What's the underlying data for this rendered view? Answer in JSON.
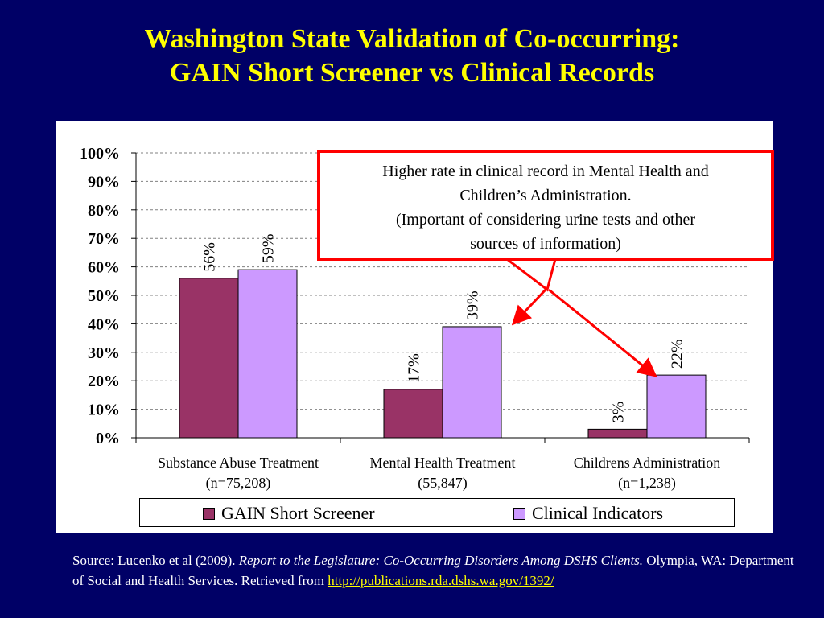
{
  "slide": {
    "title_line1": "Washington State Validation of Co-occurring:",
    "title_line2": "GAIN Short Screener vs Clinical Records"
  },
  "callout": {
    "line1": "Higher rate in clinical record in Mental Health and",
    "line2": "Children’s Administration.",
    "line3": "(Important of considering urine tests and other",
    "line4": "sources of information)"
  },
  "source": {
    "prefix": "Source:  Lucenko et al (2009). ",
    "italic": "Report to the Legislature: Co-Occurring Disorders Among DSHS Clients.",
    "middle": "  Olympia, WA: Department of Social and Health Services. Retrieved from ",
    "link": "http://publications.rda.dshs.wa.gov/1392/"
  },
  "colors": {
    "series1": "#993366",
    "series2": "#cc99ff",
    "background": "#000066",
    "title": "#ffff00",
    "callout_border": "#ff0000"
  },
  "chart_data": {
    "type": "bar",
    "categories": [
      [
        "Substance Abuse Treatment",
        "(n=75,208)"
      ],
      [
        "Mental Health Treatment",
        "(55,847)"
      ],
      [
        "Childrens Administration",
        "(n=1,238)"
      ]
    ],
    "series": [
      {
        "name": "GAIN Short Screener",
        "values": [
          56,
          17,
          3
        ],
        "labels": [
          "56%",
          "17%",
          "3%"
        ]
      },
      {
        "name": "Clinical Indicators",
        "values": [
          59,
          39,
          22
        ],
        "labels": [
          "59%",
          "39%",
          "22%"
        ]
      }
    ],
    "yticks": [
      "0%",
      "10%",
      "20%",
      "30%",
      "40%",
      "50%",
      "60%",
      "70%",
      "80%",
      "90%",
      "100%"
    ],
    "ylim": [
      0,
      100
    ],
    "grid": true,
    "legend_position": "bottom"
  }
}
